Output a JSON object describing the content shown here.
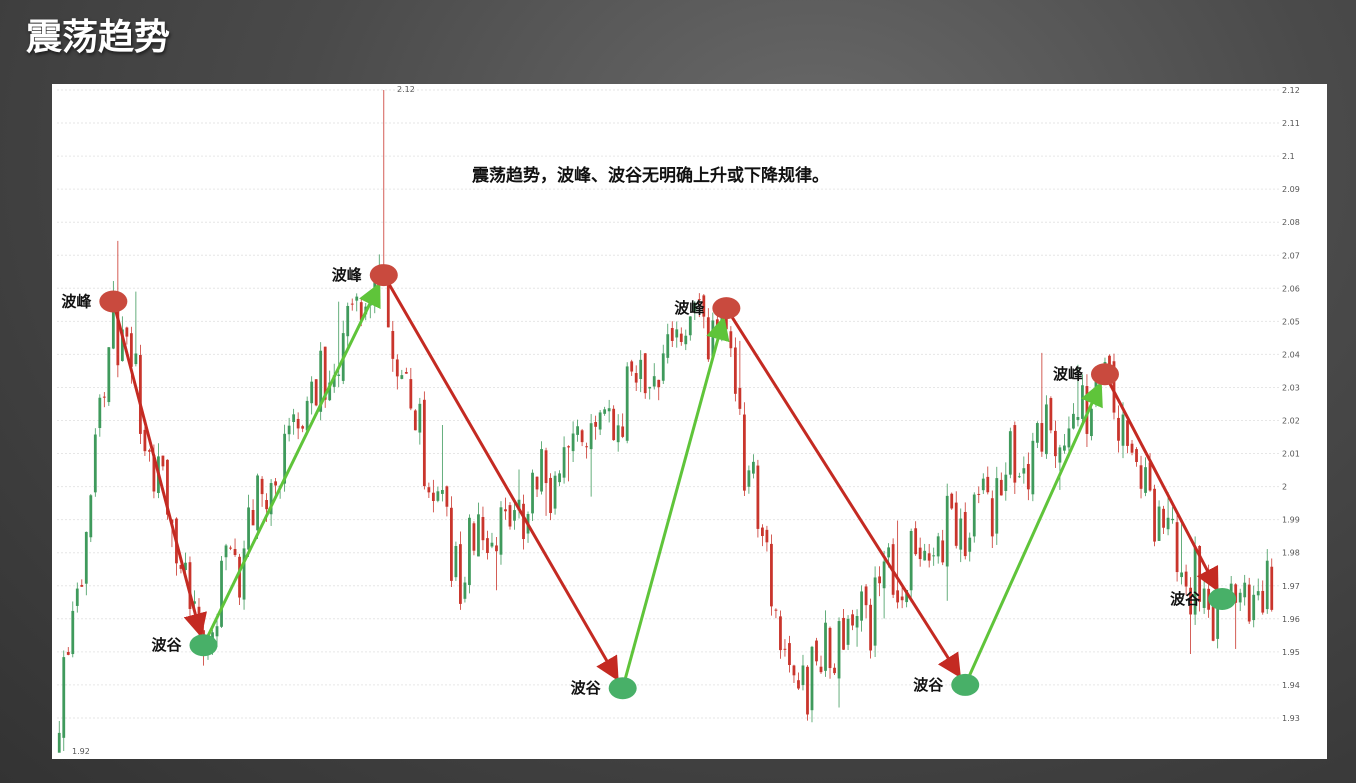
{
  "page": {
    "title": "震荡趋势"
  },
  "colors": {
    "up_candle": "#3f9a5c",
    "down_candle": "#c9352c",
    "peak_marker": "#c94a3e",
    "trough_marker": "#48b068",
    "up_arrow": "#5fc43a",
    "down_arrow": "#c42a22",
    "grid": "#e6e6e6"
  },
  "chart_data": {
    "type": "candlestick",
    "title": "",
    "annotation": "震荡趋势，波峰、波谷无明确上升或下降规律。",
    "ylim": [
      1.92,
      2.12
    ],
    "y_ticks": [
      "2.12",
      "2.11",
      "2.1",
      "2.09",
      "2.08",
      "2.07",
      "2.06",
      "2.05",
      "2.04",
      "2.03",
      "2.02",
      "2.01",
      "2",
      "1.99",
      "1.98",
      "1.97",
      "1.96",
      "1.95",
      "1.94",
      "1.93"
    ],
    "y_tick_values": [
      2.12,
      2.11,
      2.1,
      2.09,
      2.08,
      2.07,
      2.06,
      2.05,
      2.04,
      2.03,
      2.02,
      2.01,
      2.0,
      1.99,
      1.98,
      1.97,
      1.96,
      1.95,
      1.94,
      1.93
    ],
    "extremes": {
      "high_label": "2.12",
      "low_label": "1.92",
      "high": 2.12,
      "low": 1.92
    },
    "grid": true,
    "candle_count": 270,
    "pivot_bars": [
      0,
      12,
      31,
      70,
      88,
      146,
      162,
      232,
      253
    ],
    "pivot_values": [
      1.925,
      2.055,
      1.955,
      2.065,
      1.975,
      2.055,
      1.94,
      2.03,
      1.965
    ],
    "peak_label": "波峰",
    "trough_label": "波谷",
    "swing_points": [
      {
        "label": "波峰",
        "kind": "peak",
        "bar": 12,
        "value": 2.056
      },
      {
        "label": "波谷",
        "kind": "trough",
        "bar": 32,
        "value": 1.952
      },
      {
        "label": "波峰",
        "kind": "peak",
        "bar": 72,
        "value": 2.064
      },
      {
        "label": "波谷",
        "kind": "trough",
        "bar": 125,
        "value": 1.939
      },
      {
        "label": "波峰",
        "kind": "peak",
        "bar": 148,
        "value": 2.054
      },
      {
        "label": "波谷",
        "kind": "trough",
        "bar": 201,
        "value": 1.94
      },
      {
        "label": "波峰",
        "kind": "peak",
        "bar": 232,
        "value": 2.034
      },
      {
        "label": "波谷",
        "kind": "trough",
        "bar": 258,
        "value": 1.966
      }
    ]
  }
}
